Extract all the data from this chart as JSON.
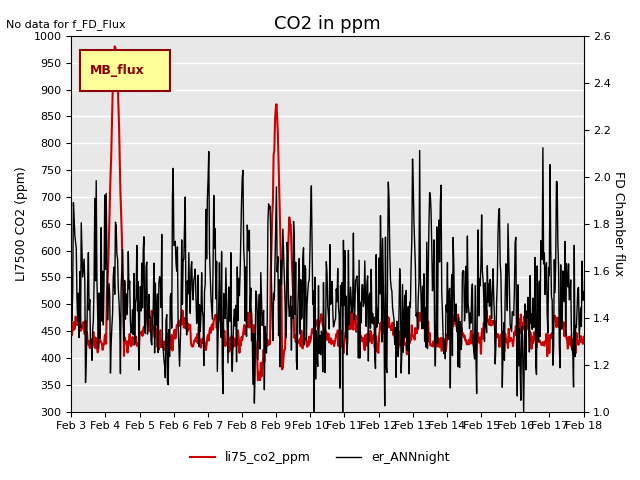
{
  "title": "CO2 in ppm",
  "top_left_text": "No data for f_FD_Flux",
  "ylabel_left": "LI7500 CO2 (ppm)",
  "ylabel_right": "FD Chamber flux",
  "ylim_left": [
    300,
    1000
  ],
  "ylim_right": [
    1.0,
    2.6
  ],
  "xtick_labels": [
    "Feb 3",
    "Feb 4",
    "Feb 5",
    "Feb 6",
    "Feb 7",
    "Feb 8",
    "Feb 9",
    "Feb 10",
    "Feb 11",
    "Feb 12",
    "Feb 13",
    "Feb 14",
    "Feb 15",
    "Feb 16",
    "Feb 17",
    "Feb 18"
  ],
  "legend_box_label": "MB_flux",
  "legend_box_color": "#ffff99",
  "legend_box_edge": "#8B0000",
  "legend_items": [
    {
      "label": "li75_co2_ppm",
      "color": "#cc0000",
      "lw": 1.5
    },
    {
      "label": "er_ANNnight",
      "color": "#000000",
      "lw": 1.0
    }
  ],
  "background_color": "#e8e8e8",
  "grid_color": "#ffffff",
  "title_fontsize": 13,
  "axis_fontsize": 9,
  "tick_fontsize": 8
}
